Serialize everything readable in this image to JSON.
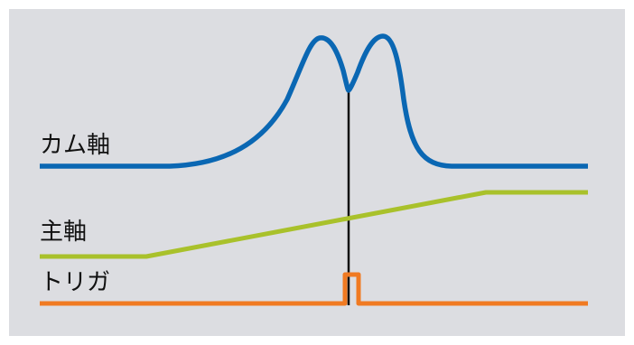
{
  "labels": {
    "cam_axis": "カム軸",
    "main_axis": "主軸",
    "trigger": "トリガ"
  },
  "colors": {
    "background": "#dcdde1",
    "cam_axis_line": "#0a67b3",
    "main_axis_line": "#a9c12b",
    "trigger_line": "#f07a22",
    "marker_line": "#111111",
    "label_text": "#111111"
  }
}
